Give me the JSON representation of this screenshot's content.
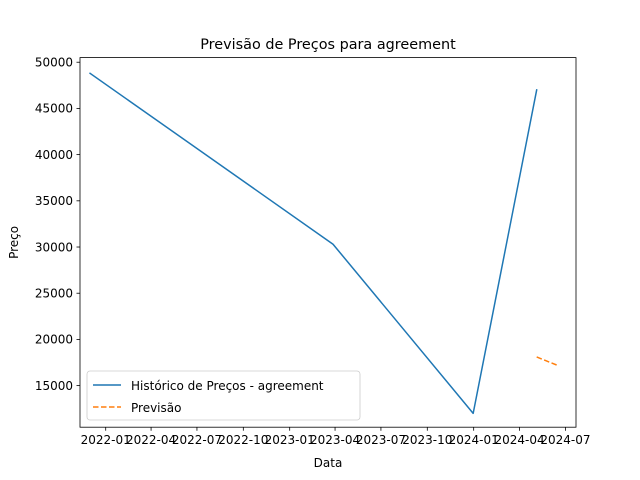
{
  "chart_data": {
    "type": "line",
    "title": "Previsão de Preços para agreement",
    "xlabel": "Data",
    "ylabel": "Preço",
    "x_axis": {
      "type": "date",
      "range": [
        "2021-11-11",
        "2024-07-22"
      ],
      "ticks": [
        {
          "date": "2022-01-01",
          "label": "2022-01"
        },
        {
          "date": "2022-04-01",
          "label": "2022-04"
        },
        {
          "date": "2022-07-01",
          "label": "2022-07"
        },
        {
          "date": "2022-10-01",
          "label": "2022-10"
        },
        {
          "date": "2023-01-01",
          "label": "2023-01"
        },
        {
          "date": "2023-04-01",
          "label": "2023-04"
        },
        {
          "date": "2023-07-01",
          "label": "2023-07"
        },
        {
          "date": "2023-10-01",
          "label": "2023-10"
        },
        {
          "date": "2024-01-01",
          "label": "2024-01"
        },
        {
          "date": "2024-04-01",
          "label": "2024-04"
        },
        {
          "date": "2024-07-01",
          "label": "2024-07"
        }
      ]
    },
    "ylim": [
      10500,
      50500
    ],
    "yticks": [
      15000,
      20000,
      25000,
      30000,
      35000,
      40000,
      45000,
      50000
    ],
    "grid": false,
    "legend_placement": "lower left",
    "series": [
      {
        "name": "Histórico de Preços - agreement",
        "color": "#1f77b4",
        "style": "solid",
        "points": [
          {
            "x": "2021-12-01",
            "y": 48800
          },
          {
            "x": "2023-03-28",
            "y": 30300
          },
          {
            "x": "2023-12-31",
            "y": 12000
          },
          {
            "x": "2024-05-05",
            "y": 47000
          }
        ]
      },
      {
        "name": "Previsão",
        "color": "#ff7f0e",
        "style": "dashed",
        "points": [
          {
            "x": "2024-05-05",
            "y": 18100
          },
          {
            "x": "2024-06-15",
            "y": 17200
          }
        ]
      }
    ]
  }
}
